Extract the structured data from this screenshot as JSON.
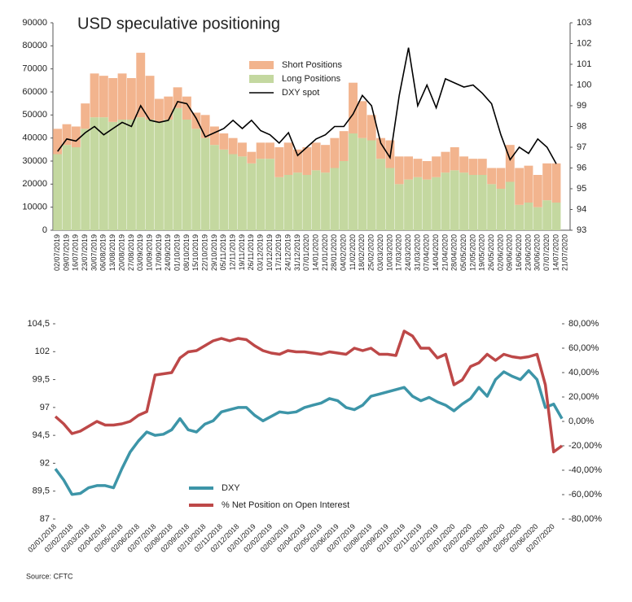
{
  "chart_data": [
    {
      "type": "bar",
      "title": "USD speculative positioning",
      "categories": [
        "02/07/2019",
        "09/07/2019",
        "16/07/2019",
        "23/07/2019",
        "30/07/2019",
        "06/08/2019",
        "13/08/2019",
        "20/08/2019",
        "27/08/2019",
        "03/09/2019",
        "10/09/2019",
        "17/09/2019",
        "24/09/2019",
        "01/10/2019",
        "08/10/2019",
        "15/10/2019",
        "22/10/2019",
        "29/10/2019",
        "05/11/2019",
        "12/11/2019",
        "19/11/2019",
        "26/11/2019",
        "03/12/2019",
        "10/12/2019",
        "17/12/2019",
        "24/12/2019",
        "31/12/2019",
        "07/01/2020",
        "14/01/2020",
        "21/01/2020",
        "28/01/2020",
        "04/02/2020",
        "11/02/2020",
        "18/02/2020",
        "25/02/2020",
        "03/03/2020",
        "10/03/2020",
        "17/03/2020",
        "24/03/2020",
        "31/03/2020",
        "07/04/2020",
        "14/04/2020",
        "21/04/2020",
        "28/04/2020",
        "05/05/2020",
        "12/05/2020",
        "19/05/2020",
        "26/05/2020",
        "02/06/2020",
        "09/06/2020",
        "16/06/2020",
        "23/06/2020",
        "30/06/2020",
        "07/07/2020",
        "14/07/2020",
        "21/07/2020"
      ],
      "stacked": true,
      "series": [
        {
          "name": "Long Positions",
          "color": "#c4d8a0",
          "values": [
            33000,
            37000,
            36000,
            44000,
            49000,
            49000,
            47000,
            48000,
            48000,
            49000,
            48000,
            47000,
            48000,
            53000,
            48000,
            44000,
            40000,
            37000,
            35000,
            33000,
            32000,
            29000,
            31000,
            31000,
            23000,
            24000,
            25000,
            24000,
            26000,
            25000,
            27000,
            30000,
            42000,
            40000,
            39000,
            31000,
            27000,
            20000,
            22000,
            23000,
            22000,
            23000,
            25000,
            26000,
            25000,
            24000,
            24000,
            20000,
            18000,
            21000,
            11000,
            12000,
            10000,
            13000,
            12000,
            null
          ]
        },
        {
          "name": "Short Positions",
          "color": "#f2b48e",
          "values": [
            11000,
            9000,
            9000,
            11000,
            19000,
            18000,
            19000,
            20000,
            18000,
            28000,
            19000,
            10000,
            10000,
            9000,
            10000,
            7000,
            10000,
            8000,
            7000,
            7000,
            6000,
            5000,
            7000,
            7000,
            13000,
            14000,
            10000,
            12000,
            12000,
            12000,
            13000,
            13000,
            22000,
            16000,
            11000,
            9000,
            12000,
            12000,
            10000,
            8000,
            8000,
            9000,
            9000,
            10000,
            7000,
            7000,
            7000,
            7000,
            9000,
            16000,
            16000,
            16000,
            14000,
            16000,
            17000,
            null
          ]
        },
        {
          "name": "DXY spot",
          "color": "#000000",
          "type": "line",
          "axis": "y2",
          "values": [
            96.8,
            97.4,
            97.3,
            97.7,
            98.0,
            97.6,
            97.9,
            98.2,
            98.0,
            99.0,
            98.3,
            98.2,
            98.3,
            99.2,
            99.1,
            98.4,
            97.5,
            97.7,
            97.9,
            98.3,
            97.9,
            98.3,
            97.8,
            97.6,
            97.2,
            97.7,
            96.6,
            97.0,
            97.4,
            97.6,
            98.0,
            98.0,
            98.6,
            99.5,
            99.0,
            97.2,
            96.5,
            99.5,
            101.8,
            99.0,
            100.0,
            98.9,
            100.3,
            100.1,
            99.9,
            100.0,
            99.6,
            99.1,
            97.6,
            96.4,
            97.0,
            96.7,
            97.4,
            97.0,
            96.2,
            null
          ]
        }
      ],
      "ylim": [
        0,
        90000
      ],
      "yticks": [
        0,
        10000,
        20000,
        30000,
        40000,
        50000,
        60000,
        70000,
        80000,
        90000
      ],
      "y2lim": [
        93,
        103
      ],
      "y2ticks": [
        93,
        94,
        95,
        96,
        97,
        98,
        99,
        100,
        101,
        102,
        103
      ]
    },
    {
      "type": "line",
      "categories": [
        "02/01/2018",
        null,
        "02/02/2018",
        null,
        "02/03/2018",
        null,
        "02/04/2018",
        null,
        "02/05/2018",
        null,
        "02/06/2018",
        null,
        "02/07/2018",
        null,
        "02/08/2018",
        null,
        "02/09/2018",
        null,
        "02/10/2018",
        null,
        "02/11/2018",
        null,
        "02/12/2018",
        null,
        "02/01/2019",
        null,
        "02/02/2019",
        null,
        "02/03/2019",
        null,
        "02/04/2019",
        null,
        "02/05/2019",
        null,
        "02/06/2019",
        null,
        "02/07/2019",
        null,
        "02/08/2019",
        null,
        "02/09/2019",
        null,
        "02/10/2019",
        null,
        "02/11/2019",
        null,
        "02/12/2019",
        null,
        "02/01/2020",
        null,
        "02/02/2020",
        null,
        "02/03/2020",
        null,
        "02/04/2020",
        null,
        "02/05/2020",
        null,
        "02/06/2020",
        null,
        "02/07/2020",
        null
      ],
      "series": [
        {
          "name": "DXY",
          "color": "#3d95a8",
          "values": [
            91.5,
            90.5,
            89.2,
            89.3,
            89.8,
            90.0,
            90.0,
            89.8,
            91.5,
            93.0,
            94.0,
            94.8,
            94.5,
            94.6,
            95.0,
            96.0,
            95.0,
            94.8,
            95.5,
            95.8,
            96.6,
            96.8,
            97.0,
            97.0,
            96.3,
            95.8,
            96.2,
            96.6,
            96.5,
            96.6,
            97.0,
            97.2,
            97.4,
            97.8,
            97.6,
            97.0,
            96.8,
            97.2,
            98.0,
            98.2,
            98.4,
            98.6,
            98.8,
            98.0,
            97.6,
            97.9,
            97.5,
            97.2,
            96.7,
            97.3,
            97.8,
            98.8,
            98.0,
            99.5,
            100.2,
            99.8,
            99.5,
            100.3,
            99.5,
            97.0,
            97.3,
            96.0
          ]
        },
        {
          "name": "% Net Position on Open Interest",
          "color": "#bd4848",
          "axis": "y2",
          "values": [
            4,
            -2,
            -10,
            -8,
            -4,
            0,
            -3,
            -3,
            -2,
            0,
            5,
            8,
            38,
            39,
            40,
            52,
            57,
            58,
            62,
            66,
            68,
            66,
            68,
            67,
            62,
            58,
            56,
            55,
            58,
            57,
            57,
            56,
            55,
            57,
            56,
            55,
            60,
            58,
            60,
            55,
            55,
            54,
            74,
            70,
            60,
            60,
            52,
            55,
            30,
            34,
            45,
            48,
            55,
            50,
            55,
            53,
            52,
            53,
            55,
            30,
            -25,
            -20
          ]
        }
      ],
      "ylim": [
        87,
        104.5
      ],
      "yticks": [
        87,
        {
          "value": 89.5,
          "label": "89,5"
        },
        92,
        {
          "value": 94.5,
          "label": "94,5"
        },
        97,
        {
          "value": 99.5,
          "label": "99,5"
        },
        102,
        {
          "value": 104.5,
          "label": "104,5"
        }
      ],
      "y2lim": [
        -80,
        80
      ],
      "y2ticks": [
        {
          "value": -80,
          "label": "-80,00%"
        },
        {
          "value": -60,
          "label": "-60,00%"
        },
        {
          "value": -40,
          "label": "-40,00%"
        },
        {
          "value": -20,
          "label": "-20,00%"
        },
        {
          "value": 0,
          "label": "0,00%"
        },
        {
          "value": 20,
          "label": "20,00%"
        },
        {
          "value": 40,
          "label": "40,00%"
        },
        {
          "value": 60,
          "label": "60,00%"
        },
        {
          "value": 80,
          "label": "80,00%"
        }
      ]
    }
  ],
  "source": "Source: CFTC"
}
